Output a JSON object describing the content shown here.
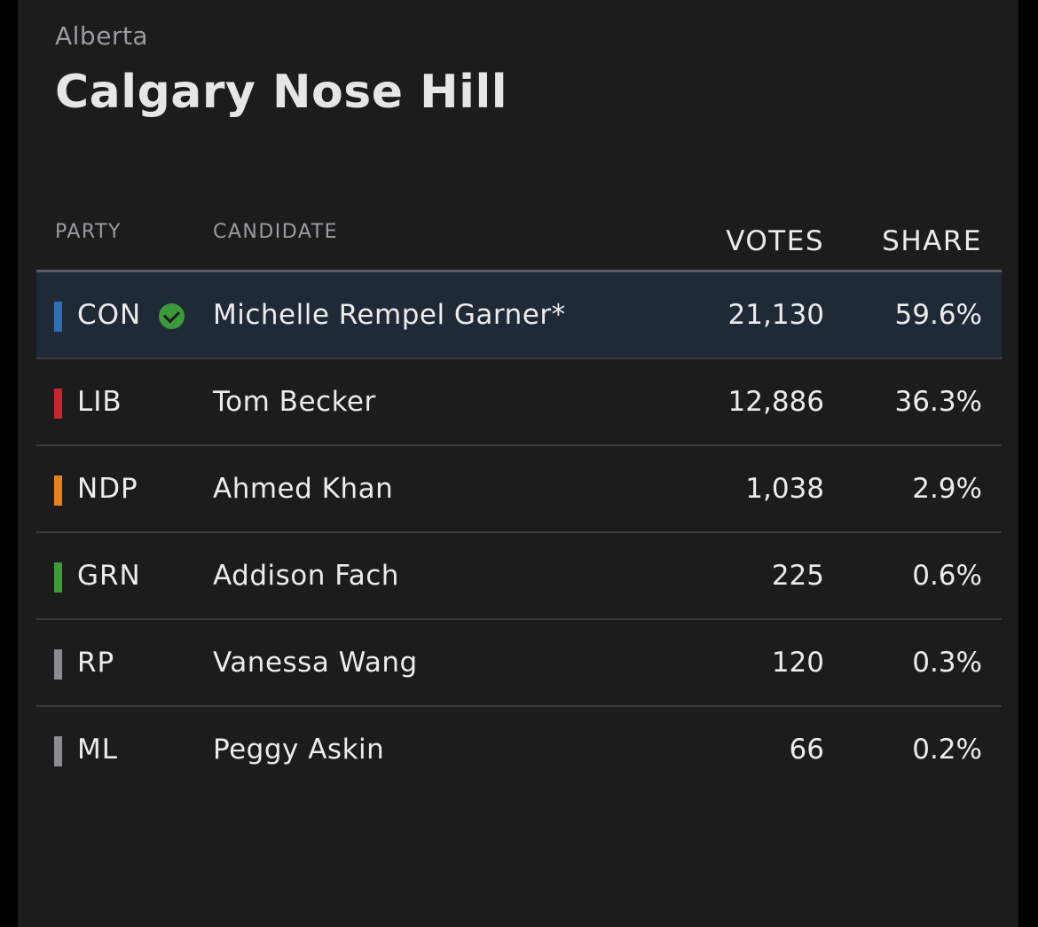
{
  "header": {
    "province": "Alberta",
    "riding": "Calgary Nose Hill"
  },
  "table": {
    "columns": {
      "party": "PARTY",
      "candidate": "CANDIDATE",
      "votes": "VOTES",
      "share": "SHARE"
    },
    "rows": [
      {
        "party": "CON",
        "candidate": "Michelle Rempel Garner*",
        "votes": "21,130",
        "share": "59.6%",
        "color": "#2f6fb5",
        "winner": true
      },
      {
        "party": "LIB",
        "candidate": "Tom Becker",
        "votes": "12,886",
        "share": "36.3%",
        "color": "#c8262e",
        "winner": false
      },
      {
        "party": "NDP",
        "candidate": "Ahmed Khan",
        "votes": "1,038",
        "share": "2.9%",
        "color": "#e8821e",
        "winner": false
      },
      {
        "party": "GRN",
        "candidate": "Addison Fach",
        "votes": "225",
        "share": "0.6%",
        "color": "#3d9a3a",
        "winner": false
      },
      {
        "party": "RP",
        "candidate": "Vanessa Wang",
        "votes": "120",
        "share": "0.3%",
        "color": "#8a8d92",
        "winner": false
      },
      {
        "party": "ML",
        "candidate": "Peggy Askin",
        "votes": "66",
        "share": "0.2%",
        "color": "#8a8d92",
        "winner": false
      }
    ]
  },
  "icons": {
    "winner": "check-circle-icon"
  },
  "colors": {
    "background": "#1c1c1d",
    "winner_row": "#1f2a36",
    "winner_check": "#3d9a3a"
  }
}
